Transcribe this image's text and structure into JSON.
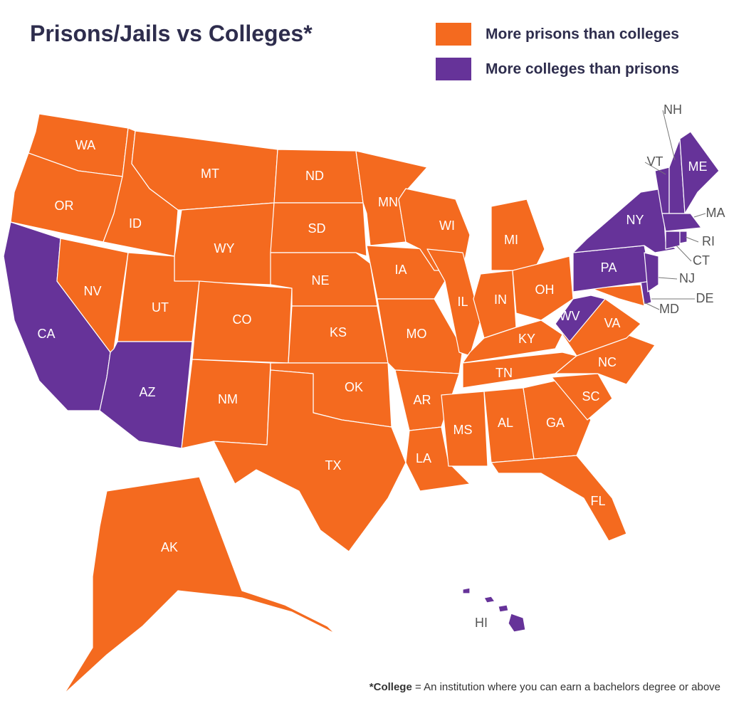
{
  "title": "Prisons/Jails vs Colleges*",
  "legend": [
    {
      "label": "More prisons than colleges",
      "color": "#f46a1f"
    },
    {
      "label": "More colleges than prisons",
      "color": "#663399"
    }
  ],
  "states": [
    {
      "abbr": "WA",
      "group": 0
    },
    {
      "abbr": "OR",
      "group": 0
    },
    {
      "abbr": "CA",
      "group": 1
    },
    {
      "abbr": "ID",
      "group": 0
    },
    {
      "abbr": "NV",
      "group": 0
    },
    {
      "abbr": "MT",
      "group": 0
    },
    {
      "abbr": "WY",
      "group": 0
    },
    {
      "abbr": "UT",
      "group": 0
    },
    {
      "abbr": "AZ",
      "group": 1
    },
    {
      "abbr": "CO",
      "group": 0
    },
    {
      "abbr": "NM",
      "group": 0
    },
    {
      "abbr": "ND",
      "group": 0
    },
    {
      "abbr": "SD",
      "group": 0
    },
    {
      "abbr": "NE",
      "group": 0
    },
    {
      "abbr": "KS",
      "group": 0
    },
    {
      "abbr": "OK",
      "group": 0
    },
    {
      "abbr": "TX",
      "group": 0
    },
    {
      "abbr": "MN",
      "group": 0
    },
    {
      "abbr": "IA",
      "group": 0
    },
    {
      "abbr": "MO",
      "group": 0
    },
    {
      "abbr": "AR",
      "group": 0
    },
    {
      "abbr": "LA",
      "group": 0
    },
    {
      "abbr": "WI",
      "group": 0
    },
    {
      "abbr": "IL",
      "group": 0
    },
    {
      "abbr": "MI",
      "group": 0
    },
    {
      "abbr": "IN",
      "group": 0
    },
    {
      "abbr": "OH",
      "group": 0
    },
    {
      "abbr": "KY",
      "group": 0
    },
    {
      "abbr": "TN",
      "group": 0
    },
    {
      "abbr": "MS",
      "group": 0
    },
    {
      "abbr": "AL",
      "group": 0
    },
    {
      "abbr": "GA",
      "group": 0
    },
    {
      "abbr": "FL",
      "group": 0
    },
    {
      "abbr": "SC",
      "group": 0
    },
    {
      "abbr": "NC",
      "group": 0
    },
    {
      "abbr": "VA",
      "group": 0
    },
    {
      "abbr": "WV",
      "group": 1
    },
    {
      "abbr": "MD",
      "group": 0
    },
    {
      "abbr": "DE",
      "group": 1
    },
    {
      "abbr": "PA",
      "group": 1
    },
    {
      "abbr": "NJ",
      "group": 1
    },
    {
      "abbr": "NY",
      "group": 1
    },
    {
      "abbr": "VT",
      "group": 1
    },
    {
      "abbr": "NH",
      "group": 1
    },
    {
      "abbr": "ME",
      "group": 1
    },
    {
      "abbr": "MA",
      "group": 1
    },
    {
      "abbr": "CT",
      "group": 1
    },
    {
      "abbr": "RI",
      "group": 1
    },
    {
      "abbr": "AK",
      "group": 0
    },
    {
      "abbr": "HI",
      "group": 1
    }
  ],
  "footnote": {
    "term": "*College",
    "text": "= An institution where you can earn a bachelors degree or above"
  }
}
